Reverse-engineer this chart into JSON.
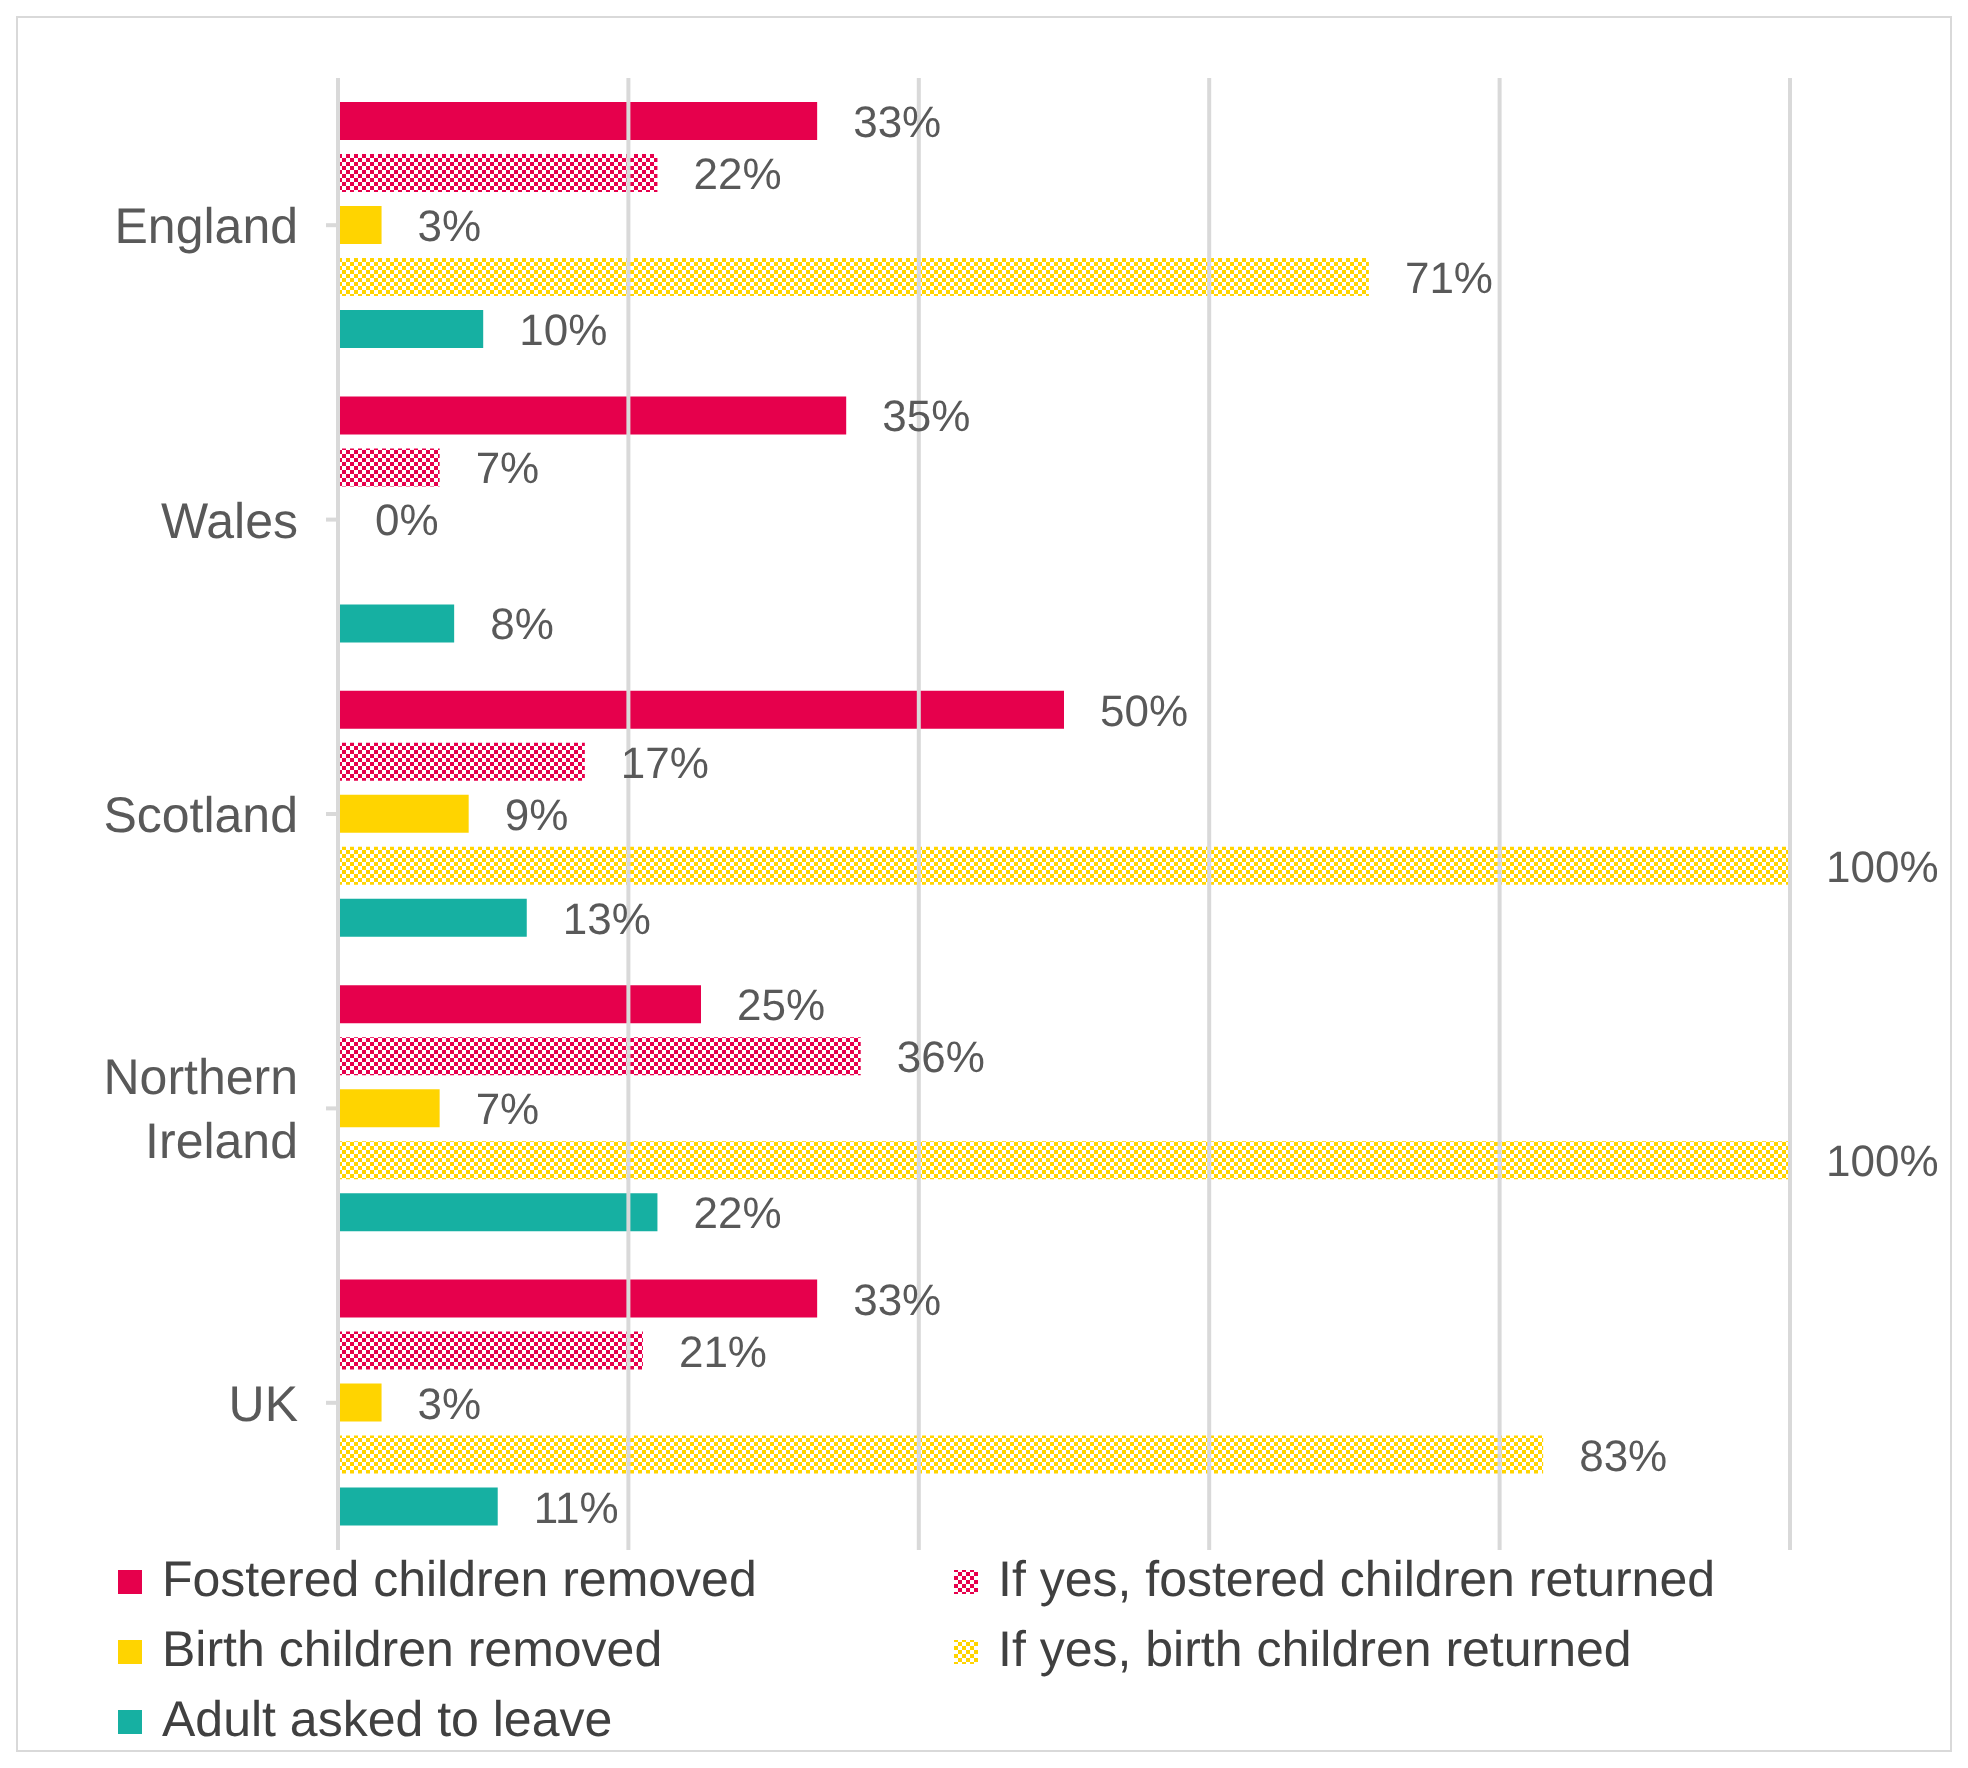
{
  "chart_data": {
    "type": "bar",
    "orientation": "horizontal",
    "categories": [
      "England",
      "Wales",
      "Scotland",
      "Northern Ireland",
      "UK"
    ],
    "series": [
      {
        "name": "Fostered children removed",
        "color": "#e6004c",
        "values": [
          33,
          35,
          50,
          25,
          33
        ],
        "value_labels": [
          "33%",
          "35%",
          "50%",
          "25%",
          "33%"
        ]
      },
      {
        "name": "If yes, fostered children returned",
        "color": "#e6004c",
        "values": [
          22,
          7,
          17,
          36,
          21
        ],
        "value_labels": [
          "22%",
          "7%",
          "17%",
          "36%",
          "21%"
        ]
      },
      {
        "name": "Birth children removed",
        "color": "#ffd400",
        "values": [
          3,
          0,
          9,
          7,
          3
        ],
        "value_labels": [
          "3%",
          "0%",
          "9%",
          "7%",
          "3%"
        ]
      },
      {
        "name": "If yes, birth children returned",
        "color": "#ffd400",
        "values": [
          71,
          null,
          100,
          100,
          83
        ],
        "value_labels": [
          "71%",
          null,
          "100%",
          "100%",
          "83%"
        ]
      },
      {
        "name": "Adult asked to leave",
        "color": "#16b0a2",
        "values": [
          10,
          8,
          13,
          22,
          11
        ],
        "value_labels": [
          "10%",
          "8%",
          "13%",
          "22%",
          "11%"
        ]
      }
    ],
    "xlim": [
      0,
      100
    ],
    "xticks": [
      {
        "value": 0,
        "label": null
      },
      {
        "value": 20,
        "label": null
      },
      {
        "value": 40,
        "label": null
      },
      {
        "value": 60,
        "label": null
      },
      {
        "value": 80,
        "label": null
      },
      {
        "value": 100,
        "label": null
      }
    ],
    "tick_labels": "y",
    "grid": "x",
    "legend": "bottom"
  }
}
